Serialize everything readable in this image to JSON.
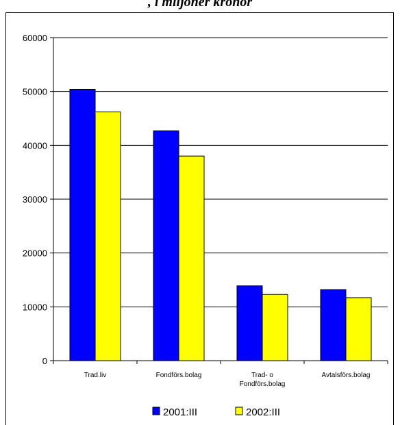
{
  "header": {
    "title_fragment": ", i miljoner kronor"
  },
  "chart_data": {
    "type": "bar",
    "categories": [
      [
        "Trad.liv"
      ],
      [
        "Fondförs.bolag"
      ],
      [
        "Trad- o",
        "Fondförs.bolag"
      ],
      [
        "Avtalsförs.bolag"
      ]
    ],
    "series": [
      {
        "name": "2001:III",
        "color": "#0000ff",
        "values": [
          50400,
          42700,
          13900,
          13200
        ]
      },
      {
        "name": "2002:III",
        "color": "#ffff00",
        "values": [
          46200,
          38000,
          12300,
          11700
        ]
      }
    ],
    "ylim": [
      0,
      60000
    ],
    "yticks": [
      "0",
      "10000",
      "20000",
      "30000",
      "40000",
      "50000",
      "60000"
    ],
    "grid": true,
    "legend": "bottom"
  }
}
